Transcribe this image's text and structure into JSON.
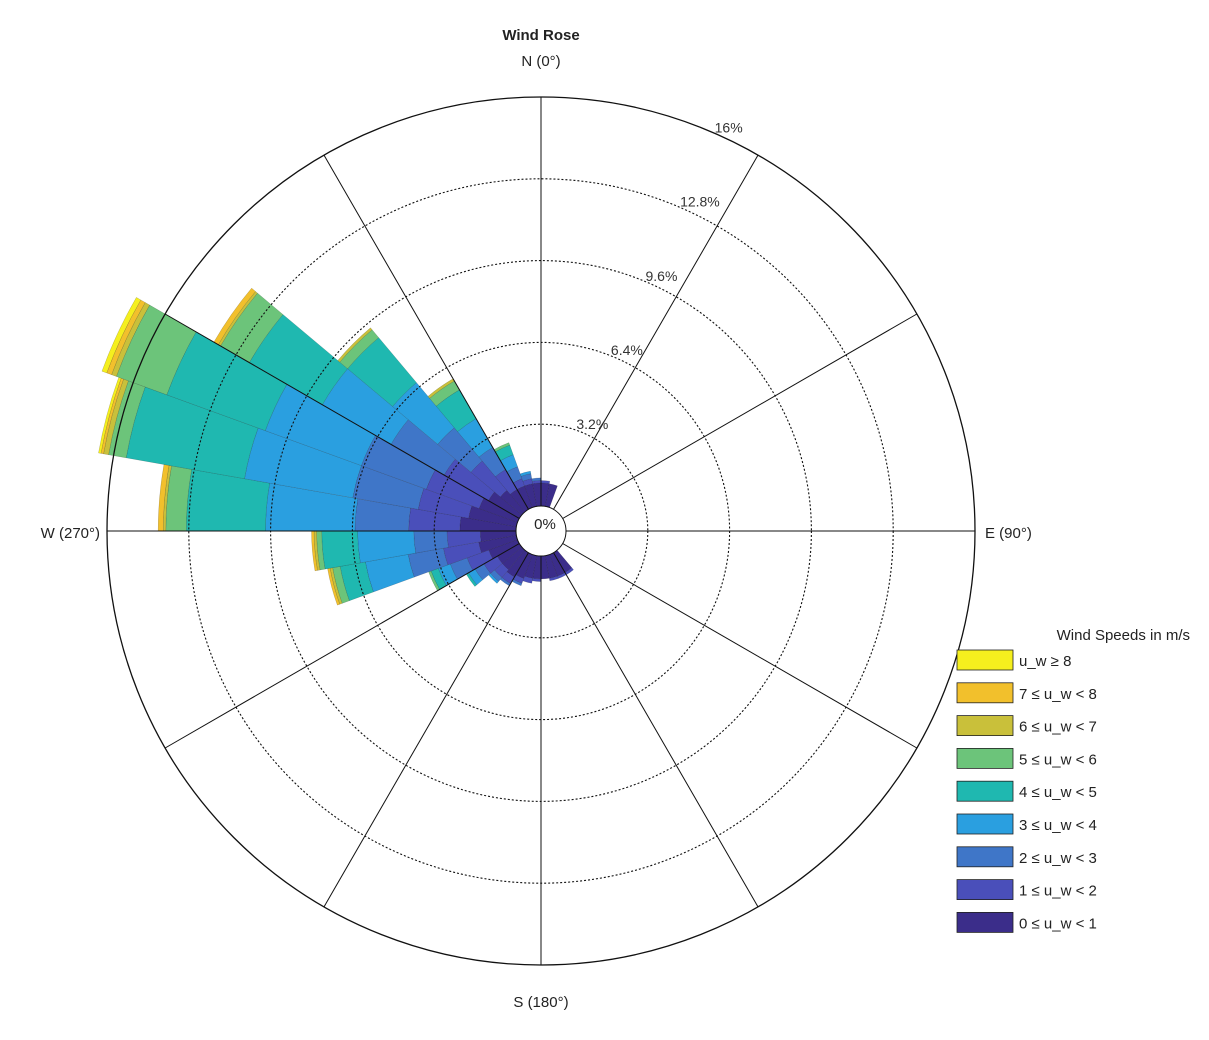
{
  "chart_data": {
    "type": "wind-rose",
    "title": "Wind Rose",
    "directions": {
      "north": "N (0°)",
      "east": "E (90°)",
      "south": "S (180°)",
      "west": "W (270°)"
    },
    "center_label": "0%",
    "radial_ticks": [
      3.2,
      6.4,
      9.6,
      12.8,
      16
    ],
    "radial_tick_labels": [
      "3.2%",
      "6.4%",
      "9.6%",
      "12.8%",
      "16%"
    ],
    "r_max": 16,
    "legend": {
      "title": "Wind Speeds in m/s",
      "placement": "bottom-right",
      "entries": [
        "u_w ≥ 8",
        "7 ≤ u_w < 8",
        "6 ≤ u_w < 7",
        "5 ≤ u_w < 6",
        "4 ≤ u_w < 5",
        "3 ≤ u_w < 4",
        "2 ≤ u_w < 3",
        "1 ≤ u_w < 2",
        "0 ≤ u_w < 1"
      ]
    },
    "speed_bins": [
      "0-1",
      "1-2",
      "2-3",
      "3-4",
      "4-5",
      "5-6",
      "6-7",
      "7-8",
      ">=8"
    ],
    "colors": [
      "#3b2d8a",
      "#4a4fba",
      "#3f76c8",
      "#2a9fe0",
      "#1fb8b0",
      "#6cc47a",
      "#c9c03a",
      "#f2c02c",
      "#f5ef1e"
    ],
    "sector_width_deg": 10,
    "sectors": [
      {
        "dir": 175,
        "cum": [
          0.9,
          0.9,
          0.9,
          0.9,
          0.9,
          0.9,
          0.9,
          0.9,
          0.9
        ]
      },
      {
        "dir": 185,
        "cum": [
          0.9,
          1.0,
          1.0,
          1.0,
          1.0,
          1.0,
          1.0,
          1.0,
          1.0
        ]
      },
      {
        "dir": 195,
        "cum": [
          0.9,
          1.1,
          1.1,
          1.1,
          1.1,
          1.1,
          1.1,
          1.1,
          1.1
        ]
      },
      {
        "dir": 205,
        "cum": [
          1.0,
          1.2,
          1.3,
          1.3,
          1.3,
          1.3,
          1.3,
          1.3,
          1.3
        ]
      },
      {
        "dir": 215,
        "cum": [
          1.1,
          1.4,
          1.5,
          1.5,
          1.5,
          1.5,
          1.5,
          1.5,
          1.5
        ]
      },
      {
        "dir": 225,
        "cum": [
          1.0,
          1.4,
          1.6,
          1.7,
          1.7,
          1.7,
          1.7,
          1.7,
          1.7
        ]
      },
      {
        "dir": 235,
        "cum": [
          1.0,
          1.6,
          2.0,
          2.3,
          2.4,
          2.4,
          2.4,
          2.4,
          2.4
        ]
      },
      {
        "dir": 245,
        "cum": [
          1.2,
          2.1,
          2.8,
          3.3,
          3.6,
          3.7,
          3.7,
          3.7,
          3.7
        ]
      },
      {
        "dir": 255,
        "cum": [
          1.5,
          2.9,
          4.3,
          6.0,
          7.0,
          7.3,
          7.4,
          7.5,
          7.5
        ]
      },
      {
        "dir": 265,
        "cum": [
          1.4,
          2.7,
          4.0,
          6.2,
          7.6,
          7.8,
          7.9,
          8.0,
          8.0
        ]
      },
      {
        "dir": 275,
        "cum": [
          2.2,
          4.2,
          6.3,
          9.8,
          12.9,
          13.7,
          13.8,
          14.0,
          14.0
        ]
      },
      {
        "dir": 285,
        "cum": [
          1.9,
          3.9,
          6.5,
          10.8,
          15.5,
          16.2,
          16.4,
          16.5,
          16.6
        ]
      },
      {
        "dir": 295,
        "cum": [
          1.6,
          3.8,
          6.5,
          10.5,
          14.6,
          16.7,
          16.9,
          17.1,
          17.3
        ]
      },
      {
        "dir": 305,
        "cum": [
          1.4,
          3.4,
          5.8,
          8.9,
          12.2,
          13.5,
          13.6,
          13.8,
          13.8
        ]
      },
      {
        "dir": 315,
        "cum": [
          1.1,
          2.6,
          4.3,
          6.6,
          8.9,
          9.3,
          9.4,
          9.4,
          9.4
        ]
      },
      {
        "dir": 325,
        "cum": [
          0.9,
          1.8,
          2.8,
          4.1,
          5.4,
          5.8,
          5.9,
          5.9,
          5.9
        ]
      },
      {
        "dir": 335,
        "cum": [
          0.9,
          1.2,
          1.7,
          2.2,
          2.6,
          2.7,
          2.7,
          2.7,
          2.7
        ]
      },
      {
        "dir": 345,
        "cum": [
          0.9,
          1.1,
          1.3,
          1.4,
          1.4,
          1.4,
          1.4,
          1.4,
          1.4
        ]
      },
      {
        "dir": 355,
        "cum": [
          0.9,
          1.0,
          1.1,
          1.1,
          1.1,
          1.1,
          1.1,
          1.1,
          1.1
        ]
      },
      {
        "dir": 5,
        "cum": [
          0.9,
          1.0,
          1.0,
          1.0,
          1.0,
          1.0,
          1.0,
          1.0,
          1.0
        ]
      },
      {
        "dir": 15,
        "cum": [
          0.9,
          0.9,
          0.9,
          0.9,
          0.9,
          0.9,
          0.9,
          0.9,
          0.9
        ]
      },
      {
        "dir": 145,
        "cum": [
          0.9,
          1.0,
          1.0,
          1.0,
          1.0,
          1.0,
          1.0,
          1.0,
          1.0
        ]
      },
      {
        "dir": 155,
        "cum": [
          0.9,
          1.0,
          1.0,
          1.0,
          1.0,
          1.0,
          1.0,
          1.0,
          1.0
        ]
      },
      {
        "dir": 165,
        "cum": [
          0.9,
          1.0,
          1.0,
          1.0,
          1.0,
          1.0,
          1.0,
          1.0,
          1.0
        ]
      }
    ]
  }
}
